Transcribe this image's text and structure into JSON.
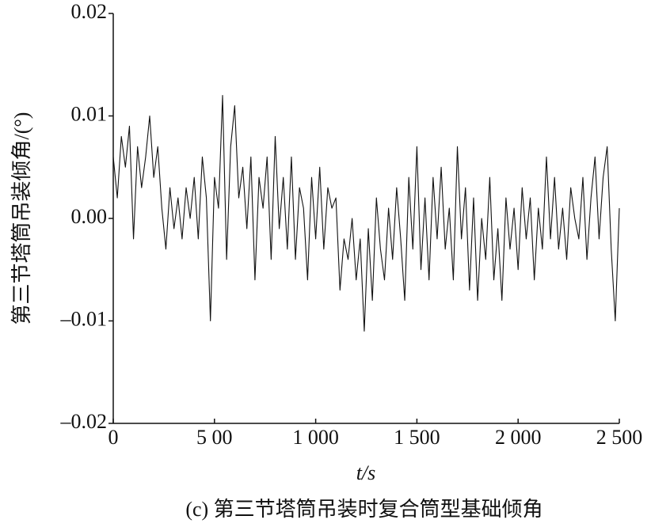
{
  "chart_data": {
    "type": "line",
    "x_label": "t/s",
    "y_label": "第三节塔筒吊装倾角/(°)",
    "caption": "(c) 第三节塔筒吊装时复合筒型基础倾角",
    "xlim": [
      0,
      2500
    ],
    "xticks": [
      0,
      {
        "value": 500,
        "label": "5 00"
      },
      {
        "value": 1000,
        "label": "1 000"
      },
      {
        "value": 1500,
        "label": "1 500"
      },
      {
        "value": 2000,
        "label": "2 000"
      },
      {
        "value": 2500,
        "label": "2 500"
      }
    ],
    "ylim": [
      -0.02,
      0.02
    ],
    "yticks": [
      {
        "value": -0.02,
        "label": "–0.02"
      },
      {
        "value": -0.01,
        "label": "–0.01"
      },
      {
        "value": 0,
        "label": "0.00"
      },
      0.01,
      0.02
    ],
    "series": [
      {
        "color": "#111111",
        "x": [
          0,
          20,
          40,
          60,
          80,
          100,
          120,
          140,
          160,
          180,
          200,
          220,
          240,
          260,
          280,
          300,
          320,
          340,
          360,
          380,
          400,
          420,
          440,
          460,
          480,
          500,
          520,
          540,
          560,
          580,
          600,
          620,
          640,
          660,
          680,
          700,
          720,
          740,
          760,
          780,
          800,
          820,
          840,
          860,
          880,
          900,
          920,
          940,
          960,
          980,
          1000,
          1020,
          1040,
          1060,
          1080,
          1100,
          1120,
          1140,
          1160,
          1180,
          1200,
          1220,
          1240,
          1260,
          1280,
          1300,
          1320,
          1340,
          1360,
          1380,
          1400,
          1420,
          1440,
          1460,
          1480,
          1500,
          1520,
          1540,
          1560,
          1580,
          1600,
          1620,
          1640,
          1660,
          1680,
          1700,
          1720,
          1740,
          1760,
          1780,
          1800,
          1820,
          1840,
          1860,
          1880,
          1900,
          1920,
          1940,
          1960,
          1980,
          2000,
          2020,
          2040,
          2060,
          2080,
          2100,
          2120,
          2140,
          2160,
          2180,
          2200,
          2220,
          2240,
          2260,
          2280,
          2300,
          2320,
          2340,
          2360,
          2380,
          2400,
          2420,
          2440,
          2460,
          2480,
          2500
        ],
        "values": [
          0.006,
          0.002,
          0.008,
          0.005,
          0.009,
          -0.002,
          0.007,
          0.003,
          0.006,
          0.01,
          0.004,
          0.007,
          0.001,
          -0.003,
          0.003,
          -0.001,
          0.002,
          -0.002,
          0.003,
          0.0,
          0.004,
          -0.002,
          0.006,
          0.002,
          -0.01,
          0.004,
          0.001,
          0.012,
          -0.004,
          0.007,
          0.011,
          0.002,
          0.005,
          -0.001,
          0.006,
          -0.006,
          0.004,
          0.001,
          0.006,
          -0.004,
          0.008,
          -0.001,
          0.004,
          -0.003,
          0.006,
          -0.004,
          0.003,
          0.001,
          -0.006,
          0.004,
          -0.002,
          0.005,
          -0.003,
          0.003,
          0.001,
          0.002,
          -0.007,
          -0.002,
          -0.004,
          0.0,
          -0.006,
          -0.002,
          -0.011,
          -0.001,
          -0.008,
          0.002,
          -0.003,
          -0.006,
          0.001,
          -0.004,
          0.003,
          -0.002,
          -0.008,
          0.004,
          -0.003,
          0.007,
          -0.005,
          0.002,
          -0.006,
          0.004,
          -0.002,
          0.005,
          -0.003,
          0.001,
          -0.006,
          0.007,
          -0.002,
          0.003,
          -0.007,
          0.002,
          -0.008,
          0.0,
          -0.004,
          0.004,
          -0.006,
          -0.001,
          -0.008,
          0.002,
          -0.003,
          0.001,
          -0.005,
          0.003,
          -0.002,
          0.002,
          -0.006,
          0.001,
          -0.003,
          0.006,
          -0.002,
          0.004,
          -0.003,
          0.001,
          -0.004,
          0.003,
          0.0,
          -0.002,
          0.004,
          -0.004,
          0.002,
          0.006,
          -0.002,
          0.004,
          0.007,
          -0.003,
          -0.01,
          0.001
        ]
      }
    ]
  }
}
